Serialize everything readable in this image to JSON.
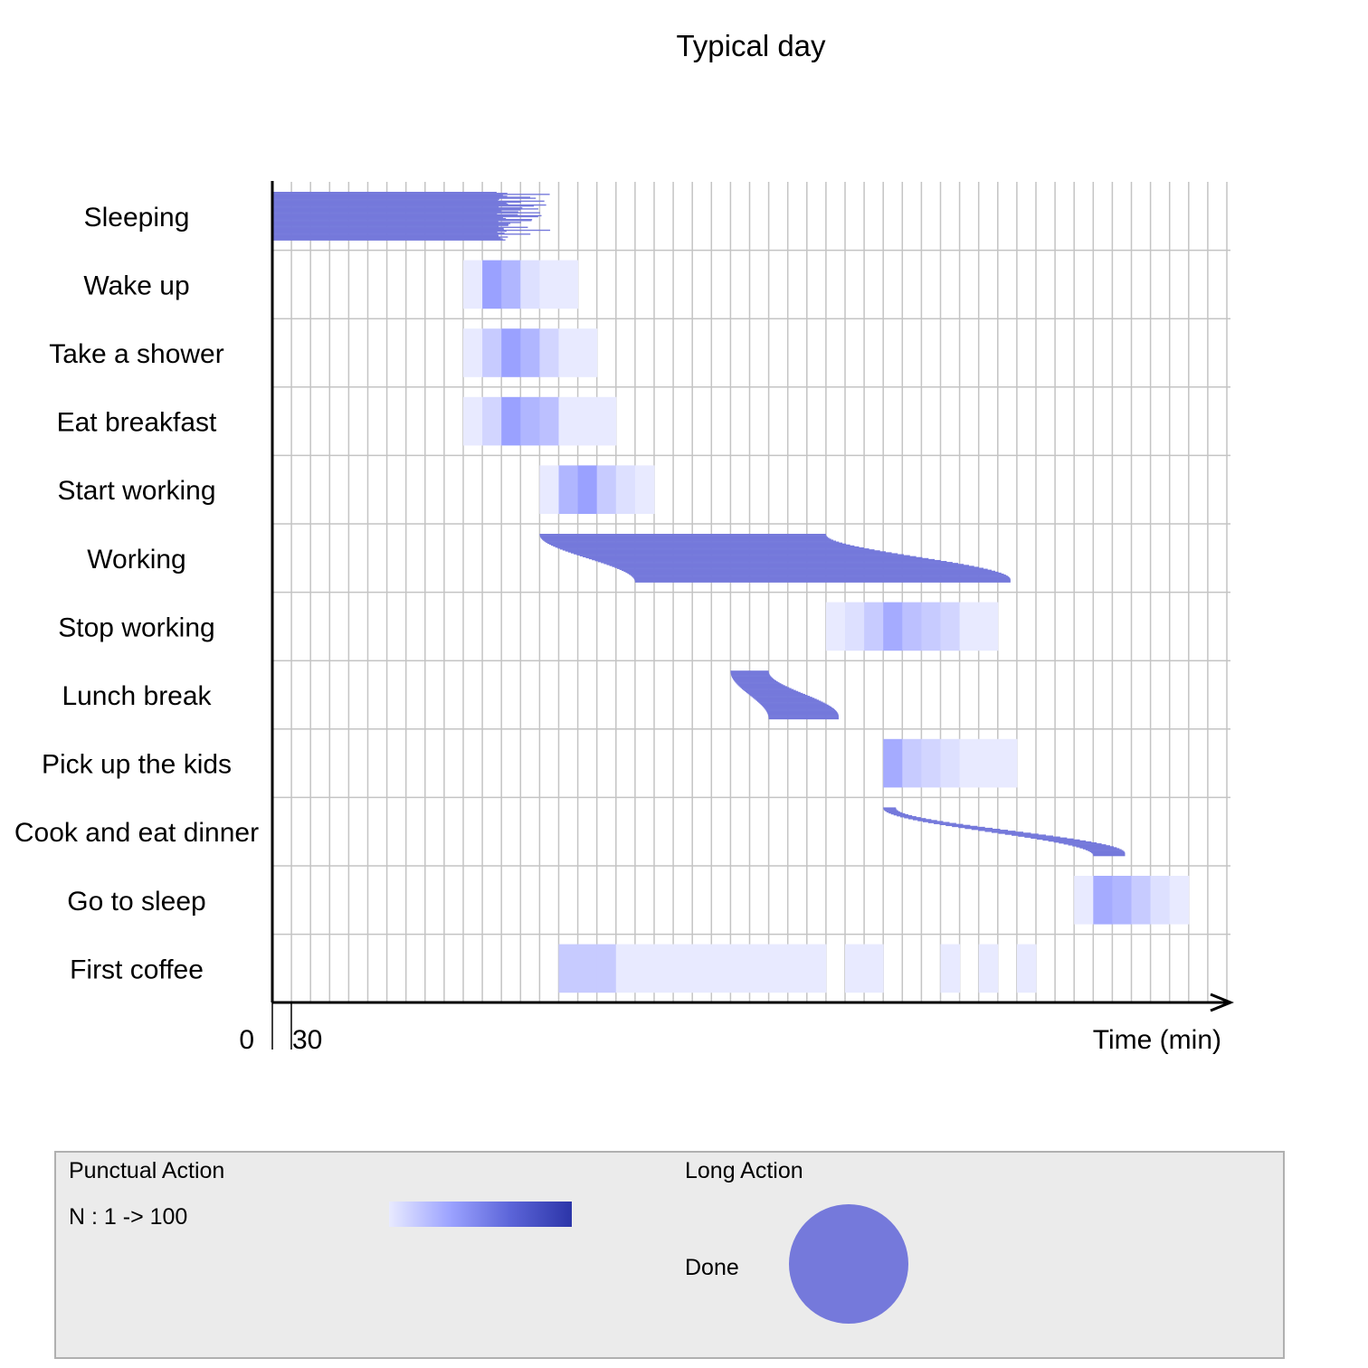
{
  "chart_data": {
    "type": "sequence-timeline",
    "title": "Typical day",
    "xlabel": "Time (min)",
    "x_tick_labels": [
      "0",
      "30"
    ],
    "step": 30,
    "xlim": [
      0,
      1500
    ],
    "grid": true,
    "rows": [
      {
        "label": "Sleeping",
        "kind": "long",
        "start": 0,
        "end_min": 300,
        "end_max": 450
      },
      {
        "label": "Wake up",
        "kind": "punctual",
        "bins": [
          [
            300,
            0.3
          ],
          [
            330,
            0.65
          ],
          [
            360,
            0.55
          ],
          [
            390,
            0.35
          ],
          [
            420,
            0.3
          ],
          [
            450,
            0.3
          ]
        ]
      },
      {
        "label": "Take a shower",
        "kind": "punctual",
        "bins": [
          [
            300,
            0.3
          ],
          [
            330,
            0.45
          ],
          [
            360,
            0.65
          ],
          [
            390,
            0.55
          ],
          [
            420,
            0.4
          ],
          [
            450,
            0.3
          ],
          [
            480,
            0.3
          ]
        ]
      },
      {
        "label": "Eat breakfast",
        "kind": "punctual",
        "bins": [
          [
            300,
            0.3
          ],
          [
            330,
            0.4
          ],
          [
            360,
            0.65
          ],
          [
            390,
            0.55
          ],
          [
            420,
            0.5
          ],
          [
            450,
            0.3
          ],
          [
            480,
            0.3
          ],
          [
            510,
            0.3
          ]
        ]
      },
      {
        "label": "Start working",
        "kind": "punctual",
        "bins": [
          [
            420,
            0.3
          ],
          [
            450,
            0.55
          ],
          [
            480,
            0.65
          ],
          [
            510,
            0.45
          ],
          [
            540,
            0.35
          ],
          [
            570,
            0.3
          ]
        ]
      },
      {
        "label": "Working",
        "kind": "long",
        "start_min": 420,
        "start_max": 570,
        "end_min": 870,
        "end_max": 1160
      },
      {
        "label": "Stop working",
        "kind": "punctual",
        "bins": [
          [
            870,
            0.3
          ],
          [
            900,
            0.35
          ],
          [
            930,
            0.45
          ],
          [
            960,
            0.6
          ],
          [
            990,
            0.5
          ],
          [
            1020,
            0.45
          ],
          [
            1050,
            0.4
          ],
          [
            1080,
            0.3
          ],
          [
            1110,
            0.3
          ]
        ]
      },
      {
        "label": "Lunch break",
        "kind": "long",
        "start_min": 720,
        "start_max": 780,
        "end_min": 780,
        "end_max": 890
      },
      {
        "label": "Pick up the kids",
        "kind": "punctual",
        "bins": [
          [
            960,
            0.6
          ],
          [
            990,
            0.45
          ],
          [
            1020,
            0.4
          ],
          [
            1050,
            0.35
          ],
          [
            1080,
            0.3
          ],
          [
            1110,
            0.3
          ],
          [
            1140,
            0.3
          ]
        ]
      },
      {
        "label": "Cook and eat dinner",
        "kind": "long",
        "start_min": 960,
        "start_max": 1290,
        "end_min": 980,
        "end_max": 1340
      },
      {
        "label": "Go to sleep",
        "kind": "punctual",
        "bins": [
          [
            1260,
            0.3
          ],
          [
            1290,
            0.6
          ],
          [
            1320,
            0.55
          ],
          [
            1350,
            0.45
          ],
          [
            1380,
            0.35
          ],
          [
            1410,
            0.3
          ]
        ]
      },
      {
        "label": "First coffee",
        "kind": "punctual",
        "bins": [
          [
            450,
            0.45
          ],
          [
            480,
            0.45
          ],
          [
            510,
            0.45
          ],
          [
            540,
            0.3
          ],
          [
            570,
            0.3
          ],
          [
            600,
            0.3
          ],
          [
            630,
            0.3
          ],
          [
            660,
            0.3
          ],
          [
            690,
            0.3
          ],
          [
            720,
            0.3
          ],
          [
            750,
            0.3
          ],
          [
            780,
            0.3
          ],
          [
            810,
            0.3
          ],
          [
            840,
            0.3
          ],
          [
            900,
            0.3
          ],
          [
            930,
            0.3
          ],
          [
            1050,
            0.3
          ],
          [
            1110,
            0.3
          ],
          [
            1170,
            0.3
          ]
        ]
      }
    ]
  },
  "legend": {
    "punctual_title": "Punctual Action",
    "punctual_scale": "N : 1 -> 100",
    "long_title": "Long Action",
    "long_item": "Done",
    "gradient_colors": [
      "#e8eaff",
      "#9ca3ff",
      "#5b64d8",
      "#2c35a8"
    ],
    "long_color": "#7579db"
  }
}
